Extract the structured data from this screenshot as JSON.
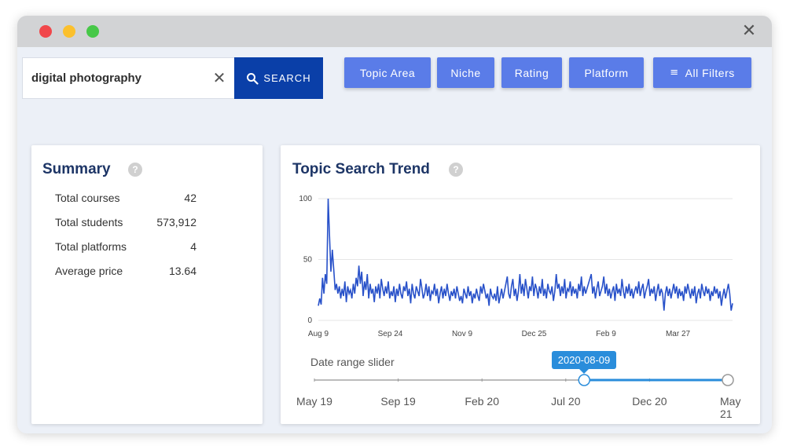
{
  "search": {
    "value": "digital photography",
    "button_label": "SEARCH"
  },
  "filters": [
    {
      "label": "Topic Area"
    },
    {
      "label": "Niche"
    },
    {
      "label": "Rating"
    },
    {
      "label": "Platform"
    },
    {
      "label": "All Filters"
    }
  ],
  "summary": {
    "title": "Summary",
    "help_glyph": "?",
    "rows": [
      {
        "label": "Total courses",
        "value": "42"
      },
      {
        "label": "Total students",
        "value": "573,912"
      },
      {
        "label": "Total platforms",
        "value": "4"
      },
      {
        "label": "Average price",
        "value": "13.64"
      }
    ]
  },
  "trend": {
    "title": "Topic Search Trend",
    "help_glyph": "?",
    "slider": {
      "label": "Date range slider",
      "tooltip": "2020-08-09",
      "tick_labels": [
        "May 19",
        "Sep 19",
        "Feb 20",
        "Jul 20",
        "Dec 20",
        "May 21"
      ],
      "range_start_fraction": 0.644,
      "range_end_fraction": 1.0
    }
  },
  "colors": {
    "accent": "#0a3fa8",
    "filter": "#5a7ce8",
    "line": "#2851c9",
    "slider": "#2a8ddb",
    "title": "#1d3566"
  },
  "chart_data": {
    "type": "line",
    "x_tick_labels": [
      "Aug 9",
      "Sep 24",
      "Nov 9",
      "Dec 25",
      "Feb 9",
      "Mar 27"
    ],
    "ylim": [
      0,
      100
    ],
    "y_ticks": [
      0,
      50,
      100
    ],
    "grid": true,
    "series": [
      {
        "values": [
          12,
          18,
          13,
          35,
          22,
          38,
          30,
          100,
          70,
          40,
          58,
          42,
          25,
          30,
          22,
          28,
          18,
          26,
          20,
          32,
          15,
          28,
          22,
          25,
          18,
          30,
          22,
          35,
          28,
          45,
          30,
          40,
          20,
          32,
          25,
          38,
          18,
          30,
          22,
          26,
          15,
          28,
          22,
          30,
          18,
          34,
          26,
          20,
          28,
          22,
          32,
          18,
          24,
          20,
          28,
          15,
          26,
          20,
          30,
          22,
          18,
          28,
          24,
          32,
          20,
          26,
          14,
          30,
          22,
          18,
          28,
          24,
          20,
          34,
          26,
          18,
          22,
          30,
          20,
          28,
          16,
          24,
          22,
          30,
          20,
          26,
          14,
          22,
          28,
          18,
          26,
          20,
          30,
          22,
          16,
          24,
          20,
          26,
          18,
          28,
          22,
          16,
          20,
          14,
          26,
          22,
          18,
          28,
          20,
          24,
          14,
          22,
          18,
          26,
          20,
          16,
          28,
          22,
          30,
          24,
          18,
          22,
          12,
          26,
          20,
          18,
          22,
          16,
          28,
          14,
          20,
          26,
          18,
          24,
          30,
          36,
          22,
          18,
          28,
          34,
          20,
          26,
          16,
          24,
          38,
          22,
          30,
          20,
          34,
          26,
          18,
          28,
          24,
          36,
          20,
          30,
          26,
          18,
          28,
          22,
          34,
          20,
          26,
          18,
          30,
          24,
          22,
          28,
          16,
          24,
          38,
          26,
          30,
          20,
          28,
          22,
          34,
          18,
          26,
          24,
          32,
          20,
          28,
          22,
          26,
          18,
          30,
          24,
          36,
          20,
          28,
          22,
          26,
          30,
          34,
          38,
          22,
          28,
          18,
          26,
          32,
          20,
          24,
          28,
          36,
          22,
          30,
          20,
          26,
          18,
          24,
          28,
          16,
          30,
          22,
          26,
          20,
          34,
          24,
          18,
          28,
          22,
          30,
          20,
          26,
          18,
          24,
          28,
          22,
          32,
          20,
          26,
          30,
          18,
          24,
          28,
          34,
          20,
          26,
          22,
          28,
          16,
          24,
          30,
          20,
          26,
          22,
          8,
          22,
          28,
          20,
          26,
          18,
          24,
          30,
          22,
          28,
          18,
          26,
          20,
          24,
          16,
          28,
          22,
          30,
          24,
          18,
          26,
          20,
          28,
          14,
          22,
          26,
          18,
          30,
          24,
          20,
          28,
          22,
          26,
          16,
          24,
          20,
          28,
          22,
          26,
          18,
          24,
          12,
          20,
          26,
          18,
          24,
          30,
          22,
          8,
          14
        ]
      }
    ]
  }
}
